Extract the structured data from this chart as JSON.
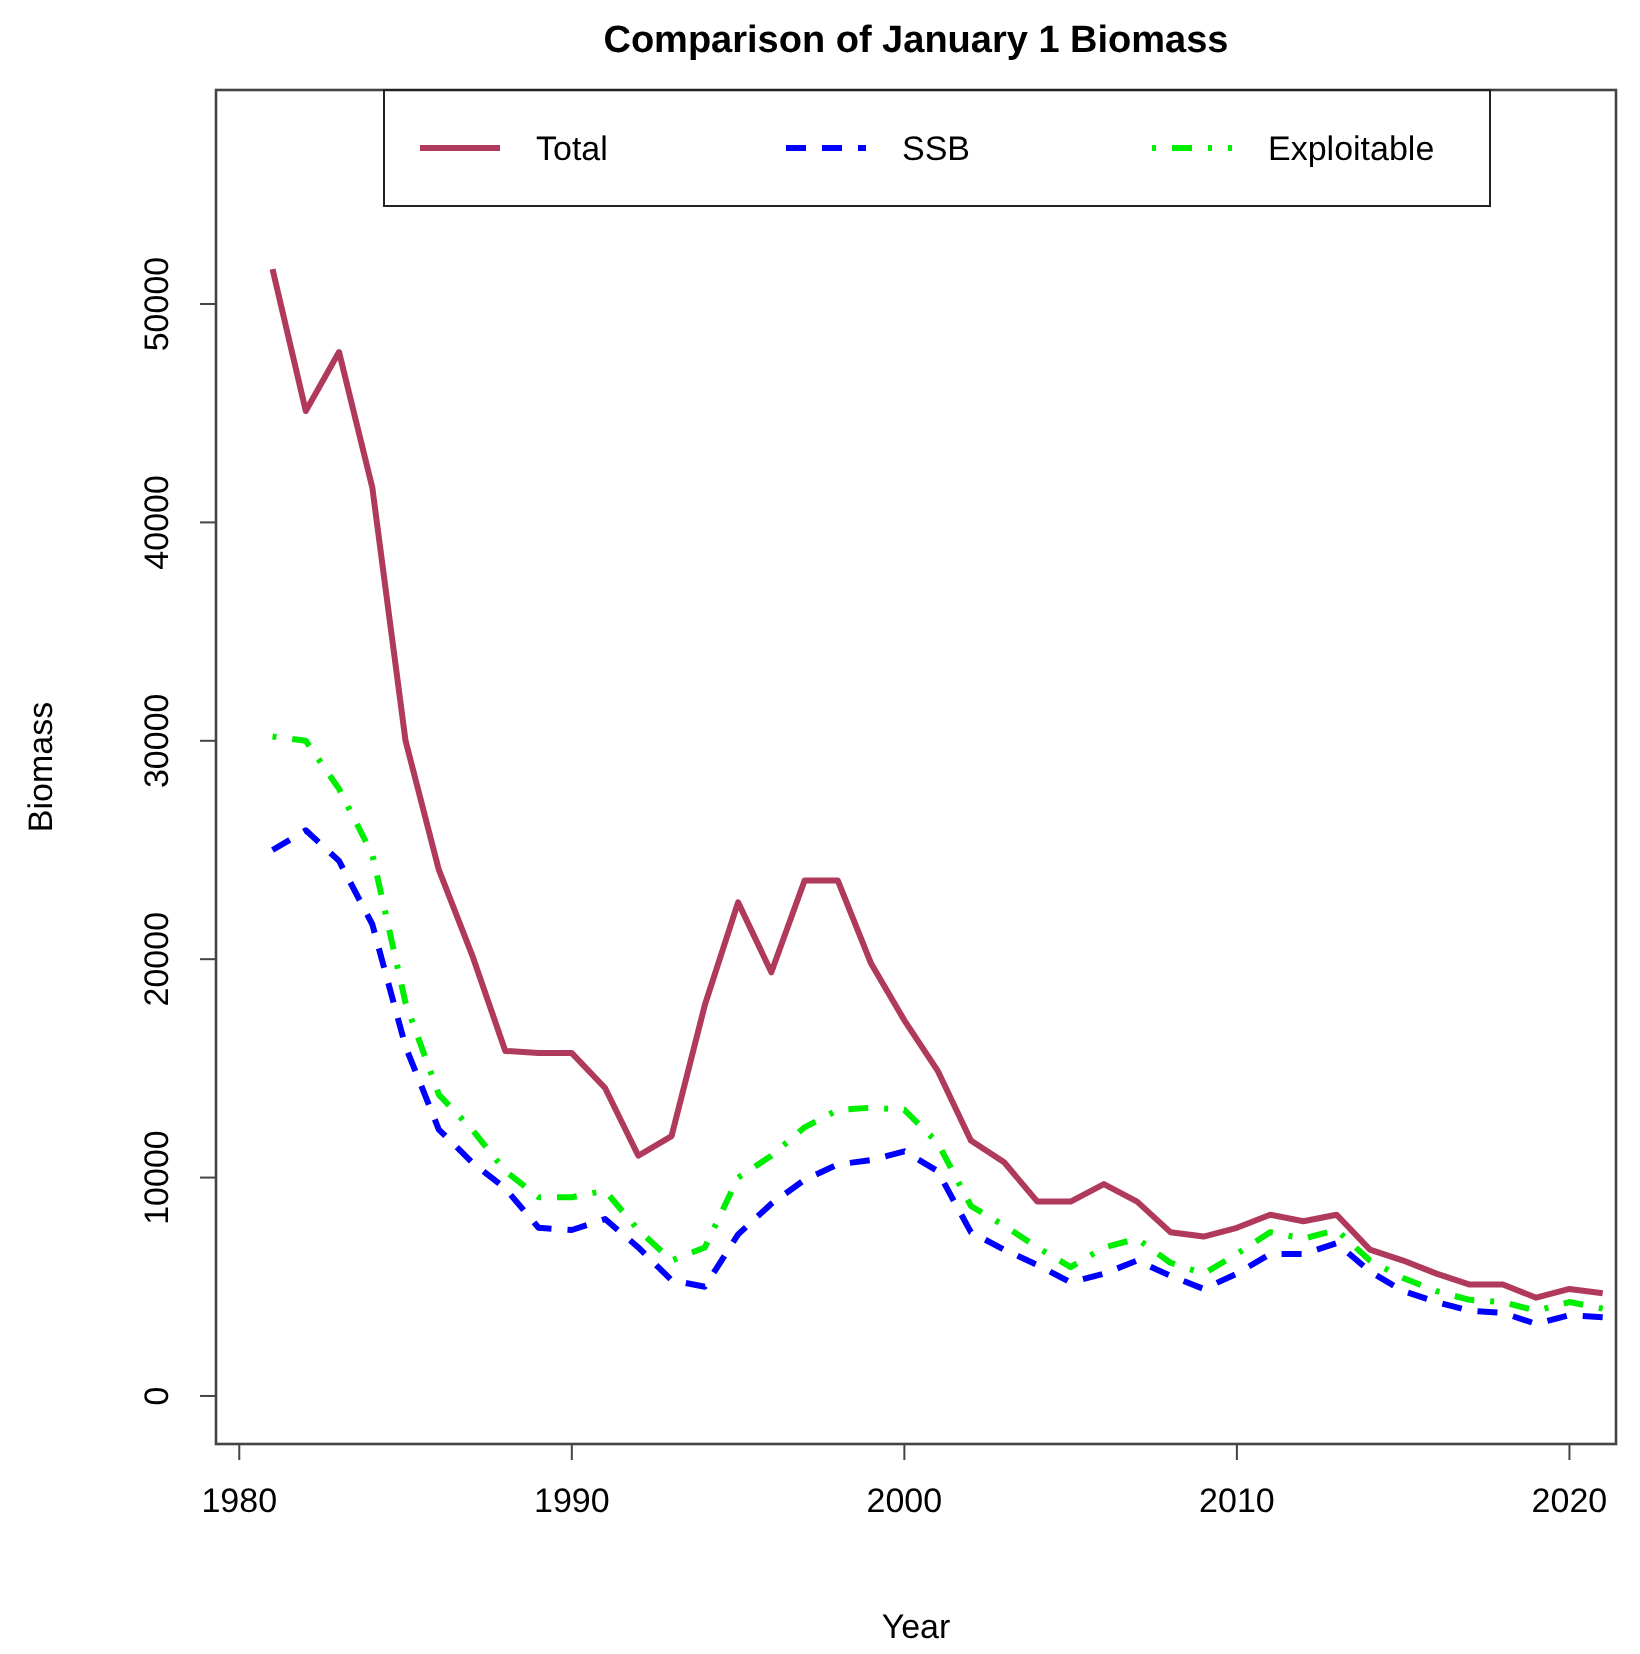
{
  "chart_data": {
    "type": "line",
    "title": "Comparison of January 1 Biomass",
    "xlabel": "Year",
    "ylabel": "Biomass",
    "x": [
      1981,
      1982,
      1983,
      1984,
      1985,
      1986,
      1987,
      1988,
      1989,
      1990,
      1991,
      1992,
      1993,
      1994,
      1995,
      1996,
      1997,
      1998,
      1999,
      2000,
      2001,
      2002,
      2003,
      2004,
      2005,
      2006,
      2007,
      2008,
      2009,
      2010,
      2011,
      2012,
      2013,
      2014,
      2015,
      2016,
      2017,
      2018,
      2019,
      2020,
      2021
    ],
    "series": [
      {
        "name": "Total",
        "color": "#b03a5b",
        "line_style": "solid",
        "values": [
          51600,
          45100,
          47800,
          41600,
          30000,
          24100,
          20200,
          15800,
          15700,
          15700,
          14100,
          11000,
          11900,
          17900,
          22600,
          19400,
          23600,
          23600,
          19800,
          17200,
          14900,
          11700,
          10700,
          8900,
          8900,
          9700,
          8900,
          7500,
          7300,
          7700,
          8300,
          8000,
          8300,
          6700,
          6200,
          5600,
          5100,
          5100,
          4500,
          4900,
          4700
        ]
      },
      {
        "name": "SSB",
        "color": "#0000ff",
        "line_style": "dashed",
        "values": [
          25000,
          25900,
          24500,
          21600,
          16000,
          12200,
          10700,
          9500,
          7700,
          7600,
          8100,
          6800,
          5300,
          5000,
          7400,
          8800,
          9900,
          10600,
          10800,
          11200,
          10300,
          7500,
          6700,
          6000,
          5200,
          5600,
          6200,
          5500,
          4900,
          5600,
          6500,
          6500,
          7000,
          5700,
          4800,
          4300,
          3900,
          3800,
          3300,
          3700,
          3600
        ]
      },
      {
        "name": "Exploitable",
        "color": "#00ee00",
        "line_style": "dashdot",
        "values": [
          30200,
          30000,
          27800,
          24800,
          18000,
          13800,
          12200,
          10300,
          9100,
          9100,
          9400,
          7600,
          6200,
          6800,
          10000,
          11000,
          12300,
          13100,
          13200,
          13100,
          11600,
          8700,
          7800,
          6800,
          5900,
          6800,
          7200,
          6100,
          5600,
          6500,
          7500,
          7200,
          7600,
          6200,
          5400,
          4800,
          4400,
          4300,
          3900,
          4300,
          4000
        ]
      }
    ],
    "xlim": [
      1979.3,
      2021.4
    ],
    "xticks": [
      1980,
      1990,
      2000,
      2010,
      2020
    ],
    "ylim": [
      -2200,
      59800
    ],
    "yticks": [
      0,
      10000,
      20000,
      30000,
      40000,
      50000
    ],
    "legend": "top",
    "grid": false,
    "marker": "none"
  }
}
